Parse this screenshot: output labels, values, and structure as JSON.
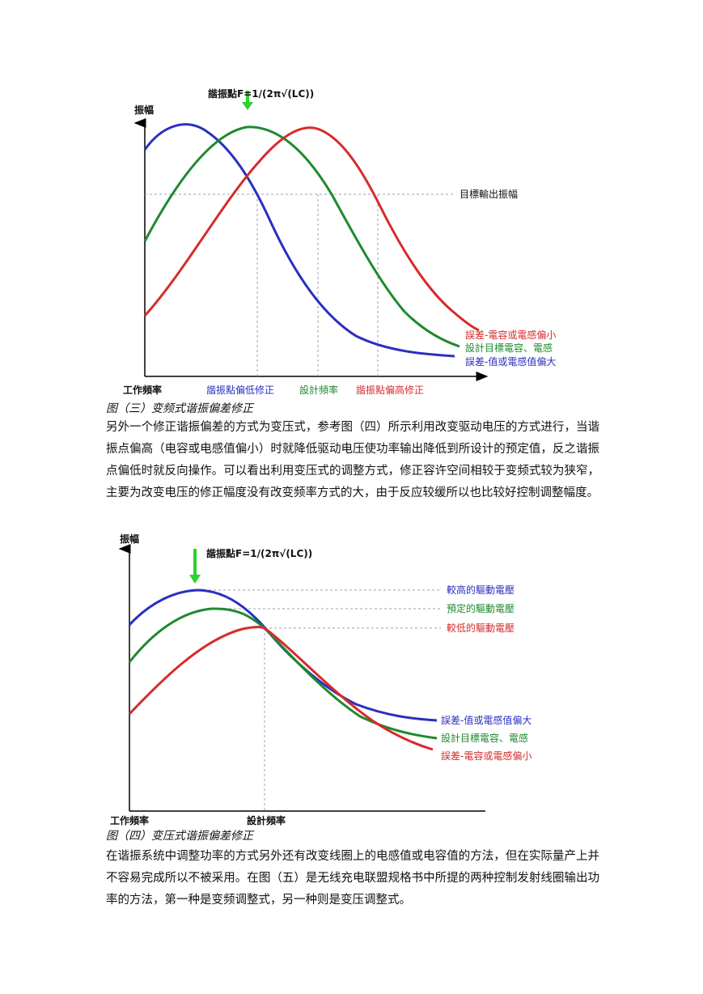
{
  "figure3": {
    "formula": "諧振點F=1/(2π√(LC))",
    "y_axis_label": "振幅",
    "target_label": "目標輸出振幅",
    "curve_labels": {
      "red": "誤差-電容或電感偏小",
      "green": "設計目標電容、電感",
      "blue": "誤差-值或電感值偏大"
    },
    "x_labels": {
      "origin": "工作頻率",
      "low": "諧振點偏低修正",
      "design": "設計頻率",
      "high": "諧振點偏高修正"
    },
    "colors": {
      "red": "#d62b2b",
      "green": "#1e8a2e",
      "blue": "#2a2fbf",
      "arrow": "#2fd12f"
    }
  },
  "caption3": "图（三）变频式谐振偏差修正",
  "paragraph1": "另外一个修正谐振偏差的方式为变压式，参考图（四）所示利用改变驱动电压的方式进行，当谐振点偏高（电容或电感值偏小）时就降低驱动电压使功率输出降低到所设计的预定值，反之谐振点偏低时就反向操作。可以看出利用变压式的调整方式，修正容许空间相较于变频式较为狭窄，主要为改变电压的修正幅度没有改变频率方式的大，由于反应较缓所以也比较好控制调整幅度。",
  "figure4": {
    "formula": "諧振點F=1/(2π√(LC))",
    "y_axis_label": "振幅",
    "level_labels": {
      "high": "較高的驅動電壓",
      "preset": "預定的驅動電壓",
      "low": "較低的驅動電壓"
    },
    "curve_labels": {
      "blue": "誤差-值或電感值偏大",
      "green": "設計目標電容、電感",
      "red": "誤差-電容或電感偏小"
    },
    "x_labels": {
      "origin": "工作頻率",
      "design": "設計頻率"
    },
    "colors": {
      "red": "#d62b2b",
      "green": "#1e8a2e",
      "blue": "#2a2fbf",
      "arrow": "#2fd12f"
    }
  },
  "caption4": "图（四）变压式谐振偏差修正",
  "paragraph2": "在谐振系统中调整功率的方式另外还有改变线圈上的电感值或电容值的方法，但在实际量产上并不容易完成所以不被采用。在图（五）是无线充电联盟规格书中所提的两种控制发射线圈输出功率的方法，第一种是变频调整式，另一种则是变压调整式。"
}
